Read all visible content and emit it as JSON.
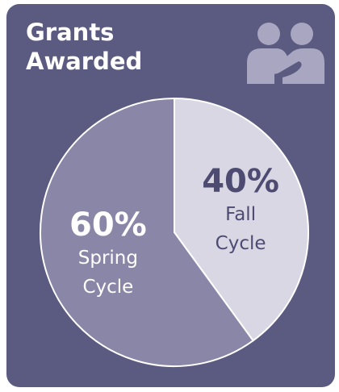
{
  "chart_data": {
    "type": "pie",
    "title": "Grants Awarded",
    "categories": [
      "Fall Cycle",
      "Spring Cycle"
    ],
    "values": [
      40,
      60
    ],
    "value_labels": [
      "40%",
      "60%"
    ],
    "colors": [
      "#d9d7e4",
      "#8a86a7"
    ],
    "label_colors": [
      "#4d4b72",
      "#ffffff"
    ]
  }
}
